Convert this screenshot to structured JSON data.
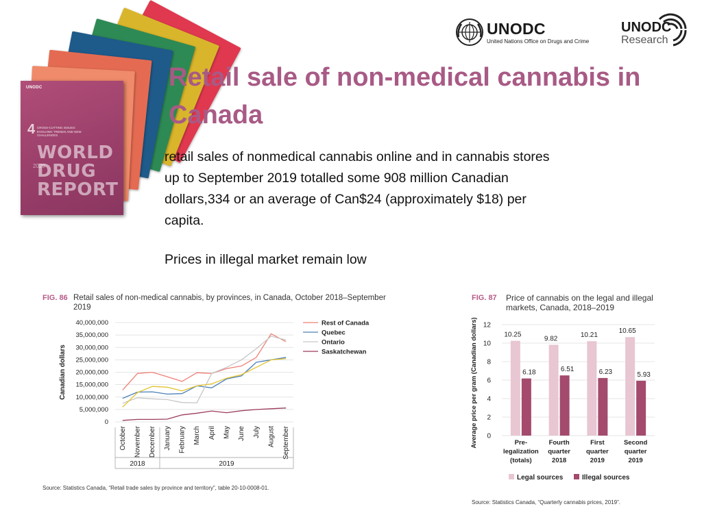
{
  "title": "Retail sale of non-medical cannabis in Canada",
  "body": {
    "paragraph": "retail sales of nonmedical cannabis online and in cannabis stores up to September 2019 totalled some 908 million Canadian dollars,334 or an average of Can$24 (approximately $18) per capita.",
    "line2": "Prices in illegal market remain low"
  },
  "logos": {
    "unodc": "UNODC",
    "unodc_sub": "United Nations Office on Drugs and Crime",
    "research_top": "UNODC",
    "research_bottom": "Research"
  },
  "report_cover": {
    "org": "UNODC",
    "number": "4",
    "issue": "CROSS-CUTTING ISSUES: EVOLVING TRENDS AND NEW CHALLENGES",
    "title_lines": [
      "WORLD",
      "DRUG",
      "REPORT"
    ],
    "year": "2020",
    "colors": [
      "#e0384f",
      "#d9b52b",
      "#2d8a54",
      "#1e5a8a",
      "#e46b52",
      "#ef8a6a"
    ]
  },
  "fig86": {
    "label": "FIG. 86",
    "caption": "Retail sales of non-medical cannabis, by provinces, in Canada, October 2018–September 2019",
    "source": "Source: Statistics Canada, “Retail trade sales by province and territory”, table 20-10-0008-01."
  },
  "fig87": {
    "label": "FIG. 87",
    "caption": "Price of cannabis on the legal and illegal markets, Canada, 2018–2019",
    "source": "Source: Statistics Canada, “Quarterly cannabis prices, 2019”."
  },
  "chart_data": [
    {
      "type": "line",
      "ylabel": "Canadian dollars",
      "ylim": [
        0,
        40000000
      ],
      "yticks": [
        0,
        5000000,
        10000000,
        15000000,
        20000000,
        25000000,
        30000000,
        35000000,
        40000000
      ],
      "ytick_labels": [
        "0",
        "5,000,000",
        "10,000,000",
        "15,000,000",
        "20,000,000",
        "25,000,000",
        "30,000,000",
        "35,000,000",
        "40,000,000"
      ],
      "categories": [
        "October",
        "November",
        "December",
        "January",
        "February",
        "March",
        "April",
        "May",
        "June",
        "July",
        "August",
        "September"
      ],
      "year_groups": [
        {
          "label": "2018",
          "span": 3
        },
        {
          "label": "2019",
          "span": 9
        }
      ],
      "legend_position": "top-right",
      "grid": true,
      "series": [
        {
          "name": "Rest of Canada",
          "color": "#ef7f75",
          "values": [
            12800000,
            19500000,
            20000000,
            18200000,
            16300000,
            19800000,
            19500000,
            21500000,
            22500000,
            26000000,
            35500000,
            32300000
          ]
        },
        {
          "name": "Quebec",
          "color": "#4a80b8",
          "values": [
            9500000,
            12000000,
            12100000,
            11200000,
            11400000,
            14500000,
            13700000,
            17300000,
            18500000,
            24000000,
            25000000,
            26000000
          ]
        },
        {
          "name": "Ontario",
          "color": "#c6c6c6",
          "values": [
            7500000,
            9700000,
            9300000,
            9000000,
            7800000,
            7700000,
            19500000,
            22000000,
            25000000,
            29500000,
            34500000,
            33000000
          ]
        },
        {
          "name": "Saskatchewan",
          "color": "#9c3a5e",
          "values": [
            600000,
            1000000,
            1000000,
            1100000,
            2800000,
            3500000,
            4400000,
            3700000,
            4500000,
            5000000,
            5300000,
            5600000
          ]
        },
        {
          "name": "",
          "color": "#e3c22a",
          "values": [
            6000000,
            11800000,
            14300000,
            14000000,
            12500000,
            14500000,
            15300000,
            17600000,
            19000000,
            22000000,
            25000000,
            25500000
          ]
        }
      ]
    },
    {
      "type": "bar",
      "ylabel": "Average price per gram (Canadian dollars)",
      "ylim": [
        0,
        12
      ],
      "yticks": [
        0,
        2,
        4,
        6,
        8,
        10,
        12
      ],
      "categories": [
        [
          "Pre-",
          "legalization",
          "(totals)"
        ],
        [
          "Fourth",
          "quarter",
          "2018"
        ],
        [
          "First",
          "quarter",
          "2019"
        ],
        [
          "Second",
          "quarter",
          "2019"
        ]
      ],
      "legend_position": "bottom",
      "grid": true,
      "series": [
        {
          "name": "Legal sources",
          "color": "#e8c6d2",
          "values": [
            10.25,
            9.82,
            10.21,
            10.65
          ],
          "labels": [
            "10.25",
            "9.82",
            "10.21",
            "10.65"
          ]
        },
        {
          "name": "Illegal sources",
          "color": "#a34a6d",
          "values": [
            6.18,
            6.51,
            6.23,
            5.93
          ],
          "labels": [
            "6.18",
            "6.51",
            "6.23",
            "5.93"
          ]
        }
      ]
    }
  ]
}
